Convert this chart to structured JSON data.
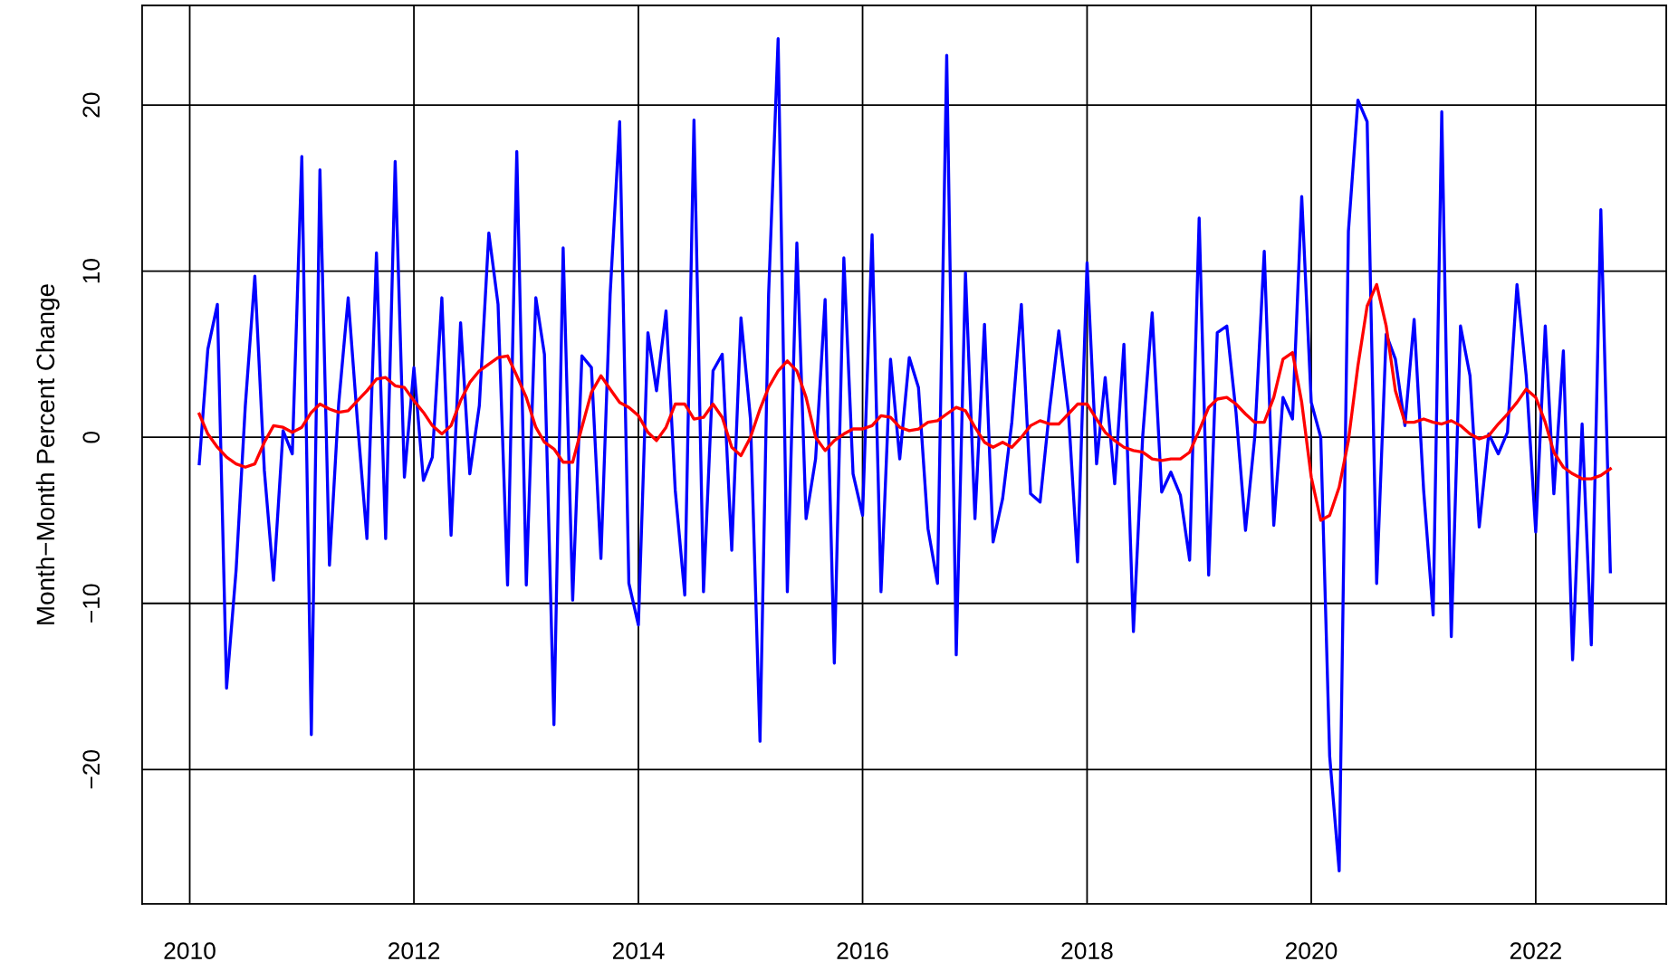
{
  "chart_data": {
    "type": "line",
    "ylabel": "Month−Month Percent Change",
    "x": [
      "2010-02",
      "2010-03",
      "2010-04",
      "2010-05",
      "2010-06",
      "2010-07",
      "2010-08",
      "2010-09",
      "2010-10",
      "2010-11",
      "2010-12",
      "2011-01",
      "2011-02",
      "2011-03",
      "2011-04",
      "2011-05",
      "2011-06",
      "2011-07",
      "2011-08",
      "2011-09",
      "2011-10",
      "2011-11",
      "2011-12",
      "2012-01",
      "2012-02",
      "2012-03",
      "2012-04",
      "2012-05",
      "2012-06",
      "2012-07",
      "2012-08",
      "2012-09",
      "2012-10",
      "2012-11",
      "2012-12",
      "2013-01",
      "2013-02",
      "2013-03",
      "2013-04",
      "2013-05",
      "2013-06",
      "2013-07",
      "2013-08",
      "2013-09",
      "2013-10",
      "2013-11",
      "2013-12",
      "2014-01",
      "2014-02",
      "2014-03",
      "2014-04",
      "2014-05",
      "2014-06",
      "2014-07",
      "2014-08",
      "2014-09",
      "2014-10",
      "2014-11",
      "2014-12",
      "2015-01",
      "2015-02",
      "2015-03",
      "2015-04",
      "2015-05",
      "2015-06",
      "2015-07",
      "2015-08",
      "2015-09",
      "2015-10",
      "2015-11",
      "2015-12",
      "2016-01",
      "2016-02",
      "2016-03",
      "2016-04",
      "2016-05",
      "2016-06",
      "2016-07",
      "2016-08",
      "2016-09",
      "2016-10",
      "2016-11",
      "2016-12",
      "2017-01",
      "2017-02",
      "2017-03",
      "2017-04",
      "2017-05",
      "2017-06",
      "2017-07",
      "2017-08",
      "2017-09",
      "2017-10",
      "2017-11",
      "2017-12",
      "2018-01",
      "2018-02",
      "2018-03",
      "2018-04",
      "2018-05",
      "2018-06",
      "2018-07",
      "2018-08",
      "2018-09",
      "2018-10",
      "2018-11",
      "2018-12",
      "2019-01",
      "2019-02",
      "2019-03",
      "2019-04",
      "2019-05",
      "2019-06",
      "2019-07",
      "2019-08",
      "2019-09",
      "2019-10",
      "2019-11",
      "2019-12",
      "2020-01",
      "2020-02",
      "2020-03",
      "2020-04",
      "2020-05",
      "2020-06",
      "2020-07",
      "2020-08",
      "2020-09",
      "2020-10",
      "2020-11",
      "2020-12",
      "2021-01",
      "2021-02",
      "2021-03",
      "2021-04",
      "2021-05",
      "2021-06",
      "2021-07",
      "2021-08",
      "2021-09",
      "2021-10",
      "2021-11",
      "2021-12",
      "2022-01",
      "2022-02",
      "2022-03",
      "2022-04",
      "2022-05",
      "2022-06",
      "2022-07",
      "2022-08",
      "2022-09"
    ],
    "series": [
      {
        "color": "#0000ff",
        "values": [
          -1.6,
          5.3,
          8.0,
          -15.1,
          -8.0,
          1.9,
          9.7,
          -2.0,
          -8.6,
          0.4,
          -1.0,
          16.9,
          -17.9,
          16.1,
          -7.7,
          2.0,
          8.4,
          1.0,
          -6.1,
          11.1,
          -6.1,
          16.6,
          -2.4,
          4.2,
          -2.6,
          -1.2,
          8.4,
          -5.9,
          6.9,
          -2.2,
          1.9,
          12.3,
          8.0,
          -8.9,
          17.2,
          -8.9,
          8.4,
          5.0,
          -17.3,
          11.4,
          -9.8,
          4.9,
          4.2,
          -7.3,
          8.6,
          19.0,
          -8.8,
          -11.3,
          6.3,
          2.8,
          7.6,
          -3.2,
          -9.5,
          19.1,
          -9.3,
          4.0,
          5.0,
          -6.8,
          7.2,
          1.1,
          -18.3,
          8.6,
          24.0,
          -9.3,
          11.7,
          -4.9,
          -1.3,
          8.3,
          -13.6,
          10.8,
          -2.2,
          -4.7,
          12.2,
          -9.3,
          4.7,
          -1.3,
          4.8,
          3.0,
          -5.5,
          -8.8,
          23.0,
          -13.1,
          9.9,
          -4.9,
          6.8,
          -6.3,
          -3.7,
          0.9,
          8.0,
          -3.4,
          -3.9,
          1.7,
          6.4,
          1.6,
          -7.5,
          10.5,
          -1.6,
          3.6,
          -2.8,
          5.6,
          -11.7,
          0.0,
          7.5,
          -3.3,
          -2.1,
          -3.5,
          -7.4,
          13.2,
          -8.3,
          6.3,
          6.7,
          1.5,
          -5.6,
          0.0,
          11.2,
          -5.3,
          2.4,
          1.1,
          14.5,
          2.1,
          0.0,
          -19.2,
          -26.1,
          12.4,
          20.3,
          19.0,
          -8.8,
          6.2,
          4.7,
          0.7,
          7.1,
          -3.2,
          -10.7,
          19.6,
          -12.0,
          6.7,
          3.7,
          -5.4,
          0.2,
          -1.0,
          0.3,
          9.2,
          3.7,
          -5.7,
          6.7,
          -3.4,
          5.2,
          -13.4,
          0.8,
          -12.5,
          13.7,
          -8.1
        ]
      },
      {
        "color": "#ff0000",
        "values": [
          1.4,
          0.2,
          -0.6,
          -1.2,
          -1.6,
          -1.8,
          -1.6,
          -0.3,
          0.7,
          0.6,
          0.3,
          0.6,
          1.5,
          2.0,
          1.7,
          1.5,
          1.6,
          2.2,
          2.8,
          3.5,
          3.6,
          3.1,
          3.0,
          2.2,
          1.5,
          0.7,
          0.2,
          0.7,
          2.2,
          3.3,
          4.0,
          4.4,
          4.8,
          4.9,
          3.7,
          2.4,
          0.6,
          -0.3,
          -0.7,
          -1.5,
          -1.5,
          0.6,
          2.7,
          3.7,
          2.9,
          2.1,
          1.8,
          1.3,
          0.3,
          -0.2,
          0.6,
          2.0,
          2.0,
          1.1,
          1.2,
          2.0,
          1.2,
          -0.6,
          -1.1,
          0.0,
          1.7,
          3.0,
          4.0,
          4.6,
          4.0,
          2.4,
          0.0,
          -0.8,
          -0.2,
          0.2,
          0.5,
          0.5,
          0.7,
          1.3,
          1.2,
          0.6,
          0.4,
          0.5,
          0.9,
          1.0,
          1.4,
          1.8,
          1.6,
          0.6,
          -0.3,
          -0.6,
          -0.3,
          -0.6,
          0.0,
          0.7,
          1.0,
          0.8,
          0.8,
          1.4,
          2.0,
          2.0,
          1.1,
          0.3,
          -0.2,
          -0.6,
          -0.8,
          -0.9,
          -1.3,
          -1.4,
          -1.3,
          -1.3,
          -0.9,
          0.4,
          1.8,
          2.3,
          2.4,
          2.0,
          1.4,
          0.9,
          0.9,
          2.4,
          4.7,
          5.1,
          2.1,
          -2.4,
          -5.0,
          -4.7,
          -3.0,
          -0.2,
          4.3,
          7.9,
          9.2,
          6.7,
          2.8,
          0.9,
          0.9,
          1.1,
          0.9,
          0.8,
          1.0,
          0.7,
          0.2,
          -0.1,
          0.1,
          0.8,
          1.4,
          2.1,
          2.9,
          2.4,
          0.9,
          -0.9,
          -1.8,
          -2.2,
          -2.5,
          -2.5,
          -2.3,
          -1.9
        ]
      }
    ],
    "xlim": [
      "2009-07-30",
      "2023-03-02"
    ],
    "xticks": [
      "2010",
      "2012",
      "2014",
      "2016",
      "2018",
      "2020",
      "2022"
    ],
    "ylim": [
      -28.1,
      26.0
    ],
    "yticks": [
      -20,
      -10,
      0,
      10,
      20
    ],
    "grid": true,
    "line_style": "solid",
    "marker": "none"
  }
}
